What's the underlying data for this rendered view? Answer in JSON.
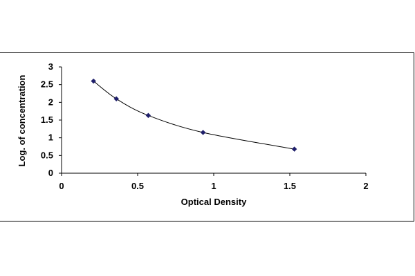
{
  "chart_data": {
    "type": "scatter",
    "title": "",
    "xlabel": "Optical Density",
    "ylabel": "Log. of concentration",
    "xlim": [
      0,
      2
    ],
    "ylim": [
      0,
      3
    ],
    "xticks": [
      "0",
      "0.5",
      "1",
      "1.5",
      "2"
    ],
    "yticks": [
      "0",
      "0.5",
      "1",
      "1.5",
      "2",
      "2.5",
      "3"
    ],
    "grid": false,
    "legend": "none",
    "trendline": "smooth curve through points",
    "colors": {
      "marker": "#1f1f6b",
      "line": "#000000",
      "axis": "#000000"
    },
    "series": [
      {
        "x": [
          0.21,
          0.36,
          0.57,
          0.93,
          1.53
        ],
        "y": [
          2.6,
          2.1,
          1.63,
          1.15,
          0.68
        ]
      }
    ]
  }
}
